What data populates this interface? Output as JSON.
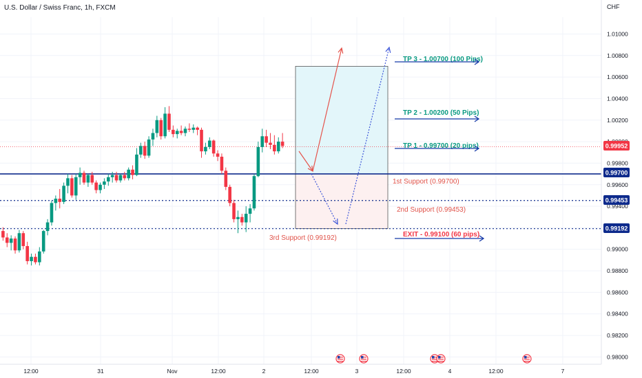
{
  "header": {
    "title": "U.S. Dollar / Swiss Franc, 1h, FXCM",
    "currency": "CHF"
  },
  "colors": {
    "up": "#089981",
    "down": "#f23645",
    "support_line": "#0d2a8c",
    "target_text": "#089981",
    "target_arrow": "#1539a8",
    "exit_text": "#f23645",
    "support_text": "#e0534a",
    "profit_zone": "#e3f6fa",
    "loss_zone": "#fdf0f0",
    "path_up": "#e5534b",
    "path_down": "#3c55d8",
    "current_price": "#f23645"
  },
  "price_badges": {
    "current": "0.99952",
    "support1": "0.99700",
    "support2": "0.99453",
    "support3": "0.99192"
  },
  "annotations": {
    "tp3": "TP 3 - 1.00700 (100 Pips)",
    "tp2": "TP 2 - 1.00200 (50 Pips)",
    "tp1": "TP 1 - 0.99700 (20 pips)",
    "exit": "EXIT - 0.99100 (60 pips)",
    "support1": "1st Support (0.99700)",
    "support2": "2nd Support (0.99453)",
    "support3": "3rd Support (0.99192)"
  },
  "chart_data": {
    "type": "candlestick",
    "title": "U.S. Dollar / Swiss Franc, 1h, FXCM",
    "ylabel": "CHF",
    "ylim": [
      0.97977,
      1.01156
    ],
    "yticks": [
      "1.01000",
      "1.00800",
      "1.00600",
      "1.00400",
      "1.00200",
      "1.00000",
      "0.99800",
      "0.99600",
      "0.99400",
      "0.99200",
      "0.99000",
      "0.98800",
      "0.98600",
      "0.98400",
      "0.98200",
      "0.98000"
    ],
    "xticks": [
      "12:00",
      "31",
      "Nov",
      "12:00",
      "2",
      "12:00",
      "3",
      "12:00",
      "4",
      "12:00",
      "7"
    ],
    "grid": true,
    "current_price": 0.99952,
    "levels": [
      {
        "name": "1st Support",
        "price": 0.997
      },
      {
        "name": "2nd Support",
        "price": 0.99453
      },
      {
        "name": "3rd Support",
        "price": 0.99192
      }
    ],
    "targets": [
      {
        "name": "TP 3",
        "price": 1.007,
        "pips": 100
      },
      {
        "name": "TP 2",
        "price": 1.002,
        "pips": 50
      },
      {
        "name": "TP 1",
        "price": 0.997,
        "pips": 20
      },
      {
        "name": "EXIT",
        "price": 0.991,
        "pips": 60
      }
    ],
    "event_icons": 6,
    "candles": [
      [
        0.9917,
        0.99205,
        0.9908,
        0.9911
      ],
      [
        0.9911,
        0.9915,
        0.9902,
        0.9906
      ],
      [
        0.9906,
        0.9913,
        0.9899,
        0.991
      ],
      [
        0.991,
        0.9912,
        0.9896,
        0.9899
      ],
      [
        0.9899,
        0.9918,
        0.9897,
        0.9915
      ],
      [
        0.9915,
        0.9917,
        0.99,
        0.9903
      ],
      [
        0.9903,
        0.9907,
        0.9886,
        0.9889
      ],
      [
        0.9889,
        0.9896,
        0.9885,
        0.9893
      ],
      [
        0.9893,
        0.9896,
        0.9886,
        0.9888
      ],
      [
        0.9888,
        0.9902,
        0.9885,
        0.9898
      ],
      [
        0.9898,
        0.9918,
        0.9896,
        0.9917
      ],
      [
        0.9917,
        0.9928,
        0.9913,
        0.9925
      ],
      [
        0.9925,
        0.9945,
        0.9922,
        0.9943
      ],
      [
        0.9943,
        0.995,
        0.9936,
        0.9947
      ],
      [
        0.9947,
        0.9956,
        0.9938,
        0.9944
      ],
      [
        0.9944,
        0.9962,
        0.9942,
        0.9959
      ],
      [
        0.9959,
        0.997,
        0.9952,
        0.9966
      ],
      [
        0.9966,
        0.9969,
        0.9948,
        0.995
      ],
      [
        0.995,
        0.997,
        0.9946,
        0.9967
      ],
      [
        0.9967,
        0.9976,
        0.996,
        0.9971
      ],
      [
        0.9971,
        0.9973,
        0.996,
        0.9962
      ],
      [
        0.9962,
        0.997,
        0.9958,
        0.9969
      ],
      [
        0.9969,
        0.9972,
        0.996,
        0.9962
      ],
      [
        0.9962,
        0.9964,
        0.9952,
        0.9955
      ],
      [
        0.9955,
        0.9962,
        0.9952,
        0.996
      ],
      [
        0.996,
        0.9966,
        0.9956,
        0.9963
      ],
      [
        0.9963,
        0.997,
        0.9959,
        0.9967
      ],
      [
        0.9967,
        0.9972,
        0.9962,
        0.9969
      ],
      [
        0.9969,
        0.9972,
        0.9962,
        0.9964
      ],
      [
        0.9964,
        0.997,
        0.9962,
        0.9969
      ],
      [
        0.9969,
        0.9972,
        0.9964,
        0.9966
      ],
      [
        0.9966,
        0.9976,
        0.9964,
        0.9974
      ],
      [
        0.9974,
        0.9978,
        0.9965,
        0.9969
      ],
      [
        0.9969,
        0.9994,
        0.9968,
        0.9988
      ],
      [
        0.9988,
        0.9999,
        0.9985,
        0.9996
      ],
      [
        0.9996,
        1.0,
        0.9984,
        0.9987
      ],
      [
        0.9987,
        1.0005,
        0.9985,
        1.0002
      ],
      [
        1.0002,
        1.0012,
        0.9996,
        1.0008
      ],
      [
        1.0008,
        1.0024,
        1.0004,
        1.002
      ],
      [
        1.002,
        1.0022,
        1.0002,
        1.0005
      ],
      [
        1.0005,
        1.0032,
        1.0003,
        1.0026
      ],
      [
        1.0026,
        1.0033,
        1.0009,
        1.0011
      ],
      [
        1.0011,
        1.0015,
        1.0004,
        1.0007
      ],
      [
        1.0007,
        1.0012,
        1.0003,
        1.001
      ],
      [
        1.001,
        1.0015,
        1.0006,
        1.0008
      ],
      [
        1.0008,
        1.0014,
        1.0005,
        1.0012
      ],
      [
        1.0012,
        1.0017,
        1.0009,
        1.0011
      ],
      [
        1.0011,
        1.0016,
        1.0008,
        1.0013
      ],
      [
        1.0013,
        1.0014,
        1.0006,
        1.0011
      ],
      [
        1.0011,
        1.0013,
        0.9985,
        0.9991
      ],
      [
        0.9991,
        0.9999,
        0.9988,
        0.9995
      ],
      [
        0.9995,
        1.0004,
        0.9993,
        1.0001
      ],
      [
        1.0001,
        1.0002,
        0.9986,
        0.9989
      ],
      [
        0.9989,
        0.9992,
        0.9982,
        0.9986
      ],
      [
        0.9986,
        0.9989,
        0.997,
        0.9973
      ],
      [
        0.9973,
        0.9976,
        0.9955,
        0.9958
      ],
      [
        0.9958,
        0.996,
        0.994,
        0.9943
      ],
      [
        0.9943,
        0.9946,
        0.9925,
        0.9928
      ],
      [
        0.9928,
        0.9936,
        0.9915,
        0.993
      ],
      [
        0.993,
        0.9933,
        0.9922,
        0.9925
      ],
      [
        0.9925,
        0.994,
        0.9916,
        0.9933
      ],
      [
        0.9933,
        0.9942,
        0.9925,
        0.9938
      ],
      [
        0.9938,
        0.997,
        0.9936,
        0.9968
      ],
      [
        0.9968,
        1.0,
        0.9967,
        0.9995
      ],
      [
        0.9995,
        1.0012,
        0.999,
        1.0005
      ],
      [
        1.0005,
        1.0011,
        0.9995,
        0.9999
      ],
      [
        0.9999,
        1.0008,
        0.9993,
        0.9997
      ],
      [
        0.9997,
        1.0006,
        0.9988,
        0.9991
      ],
      [
        0.9991,
        1.0004,
        0.9989,
        1.0
      ],
      [
        1.0,
        1.0008,
        0.9994,
        0.9996
      ]
    ]
  }
}
